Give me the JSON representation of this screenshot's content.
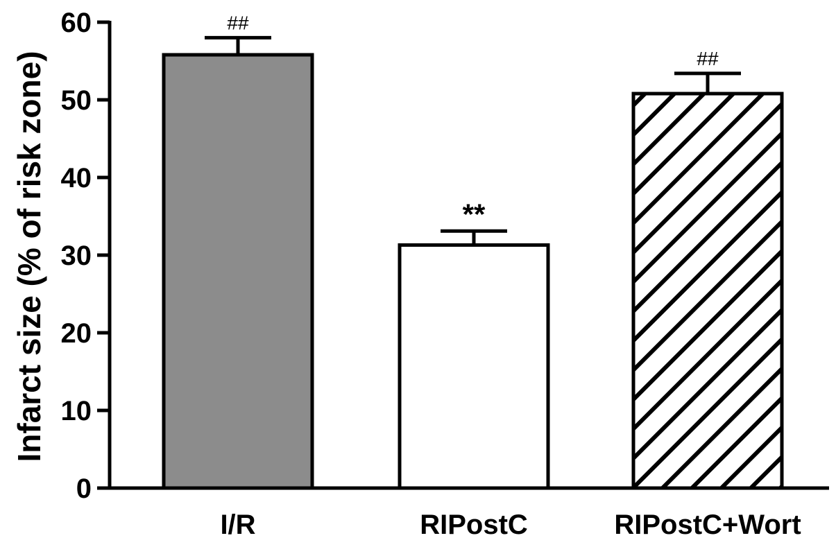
{
  "chart_data": {
    "type": "bar",
    "title": "",
    "xlabel": "",
    "ylabel": "Infarct size (% of risk zone)",
    "ylim": [
      0,
      60
    ],
    "yticks": [
      0,
      10,
      20,
      30,
      40,
      50,
      60
    ],
    "grid": false,
    "legend": "none",
    "categories": [
      "I/R",
      "RIPostC",
      "RIPostC+Wort"
    ],
    "values": [
      55.8,
      31.3,
      50.8
    ],
    "errors": [
      2.2,
      1.8,
      2.6
    ],
    "annotations": [
      "##",
      "**",
      "##"
    ],
    "fills": [
      "#8c8c8c",
      "#ffffff",
      "hatch"
    ],
    "colors": {
      "axis": "#000000",
      "bar_edge": "#000000",
      "ir_fill": "#8c8c8c",
      "postc_fill": "#ffffff",
      "hatch_stroke": "#000000"
    }
  }
}
